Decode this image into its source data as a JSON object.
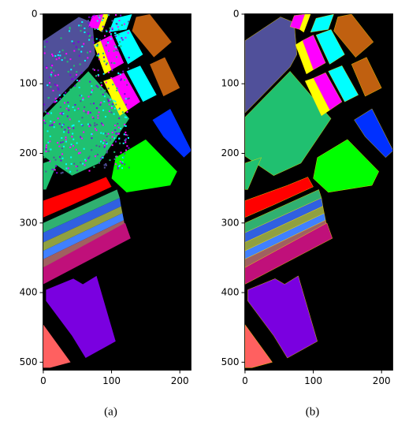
{
  "chart_data": [
    {
      "type": "image",
      "caption": "(a)",
      "xlim": [
        -0.5,
        216.5
      ],
      "ylim": [
        511.5,
        -0.5
      ],
      "xticks": [
        0,
        100,
        200
      ],
      "yticks": [
        0,
        100,
        200,
        300,
        400,
        500
      ],
      "noisy": true
    },
    {
      "type": "image",
      "caption": "(b)",
      "xlim": [
        -0.5,
        216.5
      ],
      "ylim": [
        511.5,
        -0.5
      ],
      "xticks": [
        0,
        100,
        200
      ],
      "yticks": [
        0,
        100,
        200,
        300,
        400,
        500
      ],
      "noisy": false
    }
  ]
}
